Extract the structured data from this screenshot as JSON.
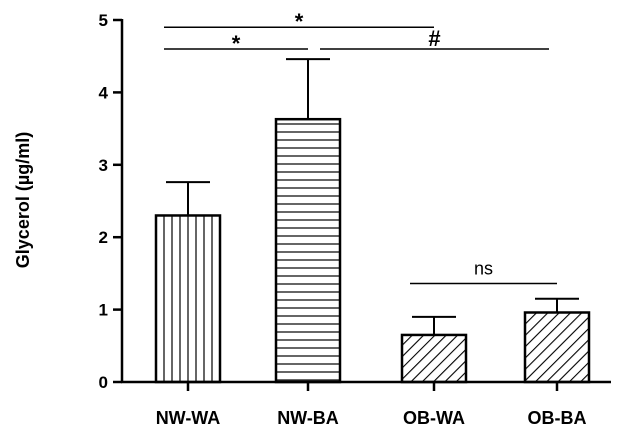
{
  "chart_data": {
    "type": "bar",
    "categories": [
      "NW-WA",
      "NW-BA",
      "OB-WA",
      "OB-BA"
    ],
    "values": [
      2.3,
      3.63,
      0.65,
      0.96
    ],
    "errors": [
      0.46,
      0.83,
      0.25,
      0.19
    ],
    "patterns": [
      "vertical",
      "horizontal",
      "diagonal",
      "diagonal"
    ],
    "ylabel": "Glycerol (µg/ml)",
    "xlabel": "",
    "ylim": [
      0,
      5
    ],
    "yticks": [
      "0",
      "1",
      "2",
      "3",
      "4",
      "5"
    ],
    "grid": false,
    "significance": [
      {
        "from": 0,
        "to": 2,
        "label": "*",
        "level": 4.9
      },
      {
        "from": 0,
        "to": 1,
        "label": "*",
        "level": 4.6
      },
      {
        "from": 1,
        "to": 3,
        "label": "#",
        "level": 4.6
      },
      {
        "from": 2,
        "to": 3,
        "label": "ns",
        "level": 1.36
      }
    ],
    "colors": {
      "stroke": "#000000",
      "fill": "#ffffff"
    }
  }
}
